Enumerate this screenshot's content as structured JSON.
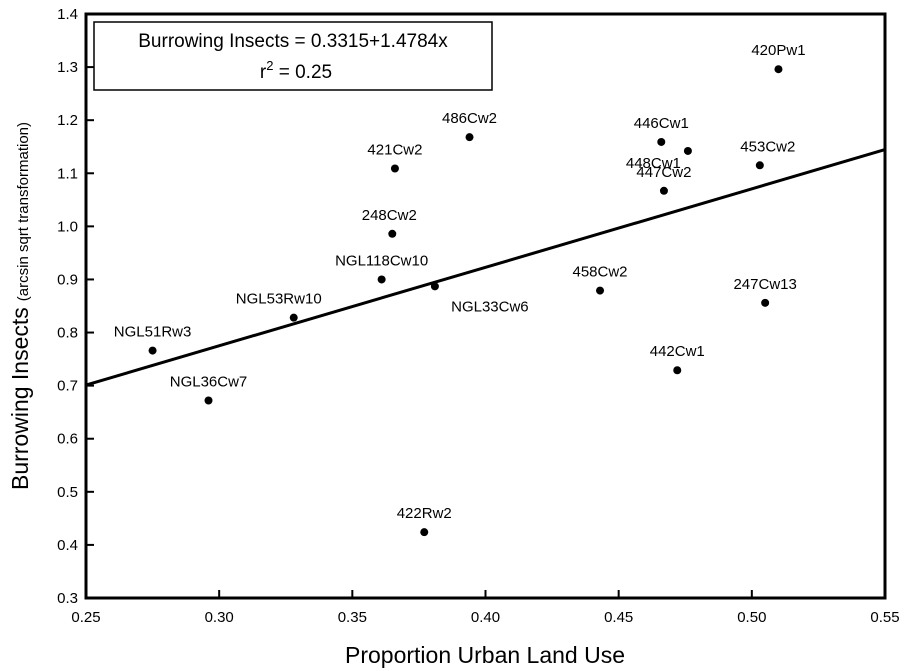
{
  "chart_data": {
    "type": "scatter",
    "xlabel": "Proportion Urban Land Use",
    "ylabel": "Burrowing Insects",
    "ylabel_sub": "(arcsin sqrt transformation)",
    "xlim": [
      0.25,
      0.55
    ],
    "ylim": [
      0.3,
      1.4
    ],
    "xticks": [
      "0.25",
      "0.30",
      "0.35",
      "0.40",
      "0.45",
      "0.50",
      "0.55"
    ],
    "yticks": [
      "0.3",
      "0.4",
      "0.5",
      "0.6",
      "0.7",
      "0.8",
      "0.9",
      "1.0",
      "1.1",
      "1.2",
      "1.3",
      "1.4"
    ],
    "grid": false,
    "regression": {
      "intercept": 0.3315,
      "slope": 1.4784,
      "equation": "Burrowing Insects = 0.3315+1.4784x",
      "r2_prefix": "r",
      "r2_exp": "2",
      "r2_suffix": " = 0.25"
    },
    "points": [
      {
        "label": "420Pw1",
        "x": 0.51,
        "y": 1.296
      },
      {
        "label": "486Cw2",
        "x": 0.394,
        "y": 1.168
      },
      {
        "label": "446Cw1",
        "x": 0.466,
        "y": 1.159
      },
      {
        "label": "448Cw1",
        "x": 0.476,
        "y": 1.142
      },
      {
        "label": "421Cw2",
        "x": 0.366,
        "y": 1.109
      },
      {
        "label": "453Cw2",
        "x": 0.503,
        "y": 1.115
      },
      {
        "label": "447Cw2",
        "x": 0.467,
        "y": 1.067
      },
      {
        "label": "248Cw2",
        "x": 0.365,
        "y": 0.986
      },
      {
        "label": "NGL118Cw10",
        "x": 0.361,
        "y": 0.9
      },
      {
        "label": "NGL33Cw6",
        "x": 0.381,
        "y": 0.887
      },
      {
        "label": "458Cw2",
        "x": 0.443,
        "y": 0.879
      },
      {
        "label": "247Cw13",
        "x": 0.505,
        "y": 0.856
      },
      {
        "label": "NGL53Rw10",
        "x": 0.328,
        "y": 0.828
      },
      {
        "label": "NGL51Rw3",
        "x": 0.275,
        "y": 0.766
      },
      {
        "label": "442Cw1",
        "x": 0.472,
        "y": 0.729
      },
      {
        "label": "NGL36Cw7",
        "x": 0.296,
        "y": 0.672
      },
      {
        "label": "422Rw2",
        "x": 0.377,
        "y": 0.424
      }
    ]
  }
}
